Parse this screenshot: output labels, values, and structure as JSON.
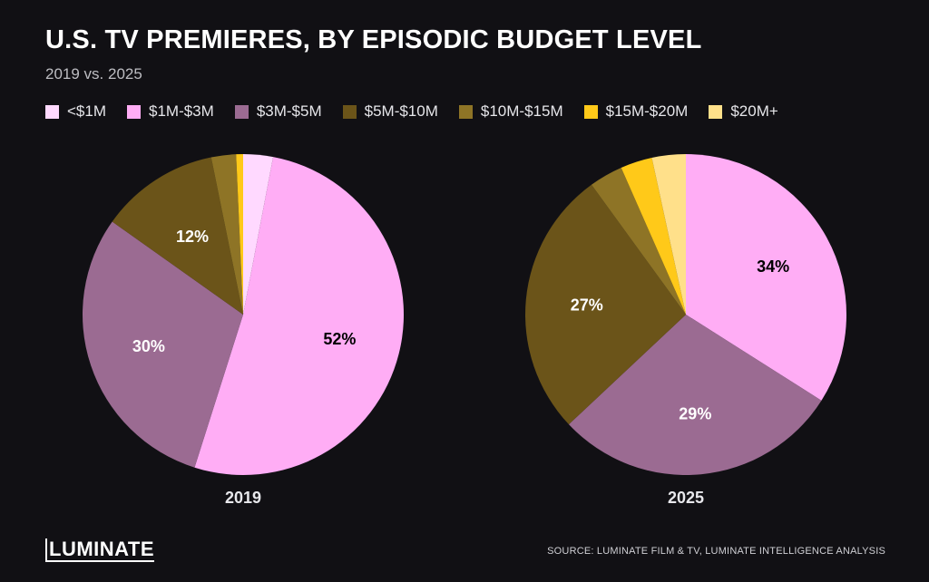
{
  "header": {
    "title": "U.S. TV PREMIERES, BY EPISODIC BUDGET LEVEL",
    "subtitle": "2019 vs. 2025"
  },
  "chart_data": {
    "type": "pie",
    "categories": [
      "<$1M",
      "$1M-$3M",
      "$3M-$5M",
      "$5M-$10M",
      "$10M-$15M",
      "$15M-$20M",
      "$20M+"
    ],
    "colors": [
      "#ffd9ff",
      "#ffadf5",
      "#9b6b92",
      "#6b5419",
      "#8e7426",
      "#ffc919",
      "#ffe08a"
    ],
    "legend_placement": "top-left",
    "series": [
      {
        "name": "2019",
        "values": [
          3,
          52,
          30,
          12,
          2.5,
          0.7,
          0
        ],
        "data_labels": [
          "",
          "52%",
          "30%",
          "12%",
          "",
          "",
          ""
        ]
      },
      {
        "name": "2025",
        "values": [
          0,
          34,
          29,
          27,
          3.4,
          3.2,
          3.4
        ],
        "data_labels": [
          "",
          "34%",
          "29%",
          "27%",
          "",
          "",
          ""
        ]
      }
    ]
  },
  "footer": {
    "logo": "LUMINATE",
    "source": "SOURCE: LUMINATE FILM & TV, LUMINATE INTELLIGENCE ANALYSIS"
  }
}
